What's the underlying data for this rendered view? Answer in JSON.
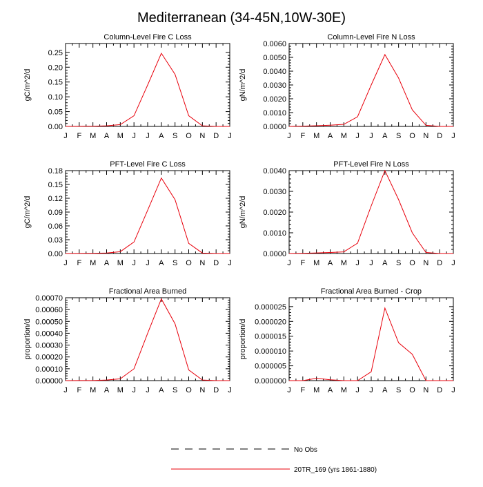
{
  "main_title": "Mediterranean (34-45N,10W-30E)",
  "month_labels": [
    "J",
    "F",
    "M",
    "A",
    "M",
    "J",
    "J",
    "A",
    "S",
    "O",
    "N",
    "D",
    "J"
  ],
  "colors": {
    "model_line": "#e8000b",
    "obs_line": "#000000",
    "axis": "#000000"
  },
  "legend": {
    "obs_label": "No Obs",
    "model_label": "20TR_169 (yrs 1861-1880)"
  },
  "chart_data": [
    {
      "type": "line",
      "title": "Column-Level Fire C Loss",
      "ylabel": "gC/m^2/d",
      "ylim": [
        0,
        0.28
      ],
      "yticks": [
        0,
        0.05,
        0.1,
        0.15,
        0.2,
        0.25
      ],
      "ytick_labels": [
        "0.00",
        "0.05",
        "0.10",
        "0.15",
        "0.20",
        "0.25"
      ],
      "x": [
        "J",
        "F",
        "M",
        "A",
        "M",
        "J",
        "J",
        "A",
        "S",
        "O",
        "N",
        "D",
        "J"
      ],
      "series": [
        {
          "name": "20TR_169 (yrs 1861-1880)",
          "values": [
            0.0,
            0.0002,
            0.0006,
            0.002,
            0.006,
            0.036,
            0.14,
            0.247,
            0.176,
            0.036,
            0.002,
            0.0,
            0.0
          ]
        }
      ]
    },
    {
      "type": "line",
      "title": "Column-Level Fire N Loss",
      "ylabel": "gN/m^2/d",
      "ylim": [
        0,
        0.006
      ],
      "yticks": [
        0,
        0.001,
        0.002,
        0.003,
        0.004,
        0.005,
        0.006
      ],
      "ytick_labels": [
        "0.0000",
        "0.0010",
        "0.0020",
        "0.0030",
        "0.0040",
        "0.0050",
        "0.0060"
      ],
      "x": [
        "J",
        "F",
        "M",
        "A",
        "M",
        "J",
        "J",
        "A",
        "S",
        "O",
        "N",
        "D",
        "J"
      ],
      "series": [
        {
          "name": "20TR_169 (yrs 1861-1880)",
          "values": [
            0.0,
            2e-05,
            5e-05,
            9e-05,
            0.00015,
            0.0007,
            0.003,
            0.0052,
            0.0035,
            0.0012,
            8e-05,
            0.0,
            0.0
          ]
        }
      ]
    },
    {
      "type": "line",
      "title": "PFT-Level Fire C Loss",
      "ylabel": "gC/m^2/d",
      "ylim": [
        0,
        0.18
      ],
      "yticks": [
        0,
        0.03,
        0.06,
        0.09,
        0.12,
        0.15,
        0.18
      ],
      "ytick_labels": [
        "0.00",
        "0.03",
        "0.06",
        "0.09",
        "0.12",
        "0.15",
        "0.18"
      ],
      "x": [
        "J",
        "F",
        "M",
        "A",
        "M",
        "J",
        "J",
        "A",
        "S",
        "O",
        "N",
        "D",
        "J"
      ],
      "series": [
        {
          "name": "20TR_169 (yrs 1861-1880)",
          "values": [
            0.0,
            0.0002,
            0.0004,
            0.0012,
            0.004,
            0.025,
            0.094,
            0.164,
            0.117,
            0.022,
            0.001,
            0.0,
            0.0
          ]
        }
      ]
    },
    {
      "type": "line",
      "title": "PFT-Level Fire N Loss",
      "ylabel": "gN/m^2/d",
      "ylim": [
        0,
        0.004
      ],
      "yticks": [
        0,
        0.001,
        0.002,
        0.003,
        0.004
      ],
      "ytick_labels": [
        "0.0000",
        "0.0010",
        "0.0020",
        "0.0030",
        "0.0040"
      ],
      "x": [
        "J",
        "F",
        "M",
        "A",
        "M",
        "J",
        "J",
        "A",
        "S",
        "O",
        "N",
        "D",
        "J"
      ],
      "series": [
        {
          "name": "20TR_169 (yrs 1861-1880)",
          "values": [
            0.0,
            1e-05,
            3e-05,
            5e-05,
            8e-05,
            0.0005,
            0.0023,
            0.004,
            0.0026,
            0.001,
            5e-05,
            0.0,
            0.0
          ]
        }
      ]
    },
    {
      "type": "line",
      "title": "Fractional Area Burned",
      "ylabel": "proportion/d",
      "ylim": [
        0,
        0.0007
      ],
      "yticks": [
        0,
        0.0001,
        0.0002,
        0.0003,
        0.0004,
        0.0005,
        0.0006,
        0.0007
      ],
      "ytick_labels": [
        "0.00000",
        "0.00010",
        "0.00020",
        "0.00030",
        "0.00040",
        "0.00050",
        "0.00060",
        "0.00070"
      ],
      "x": [
        "J",
        "F",
        "M",
        "A",
        "M",
        "J",
        "J",
        "A",
        "S",
        "O",
        "N",
        "D",
        "J"
      ],
      "series": [
        {
          "name": "20TR_169 (yrs 1861-1880)",
          "values": [
            0.0,
            5e-07,
            1e-06,
            5e-06,
            1.5e-05,
            0.0001,
            0.0004,
            0.00069,
            0.00048,
            9e-05,
            5e-06,
            0.0,
            0.0
          ]
        }
      ]
    },
    {
      "type": "line",
      "title": "Fractional Area Burned - Crop",
      "ylabel": "proportion/d",
      "ylim": [
        0,
        2.8e-05
      ],
      "yticks": [
        0,
        5e-06,
        1e-05,
        1.5e-05,
        2e-05,
        2.5e-05
      ],
      "ytick_labels": [
        "0.000000",
        "0.000005",
        "0.000010",
        "0.000015",
        "0.000020",
        "0.000025"
      ],
      "x": [
        "J",
        "F",
        "M",
        "A",
        "M",
        "J",
        "J",
        "A",
        "S",
        "O",
        "N",
        "D",
        "J"
      ],
      "series": [
        {
          "name": "20TR_169 (yrs 1861-1880)",
          "values": [
            0.0,
            0.0,
            8e-07,
            3e-07,
            0.0,
            0.0,
            3e-06,
            2.45e-05,
            1.28e-05,
            8.9e-06,
            0.0,
            0.0,
            0.0
          ]
        }
      ]
    }
  ]
}
